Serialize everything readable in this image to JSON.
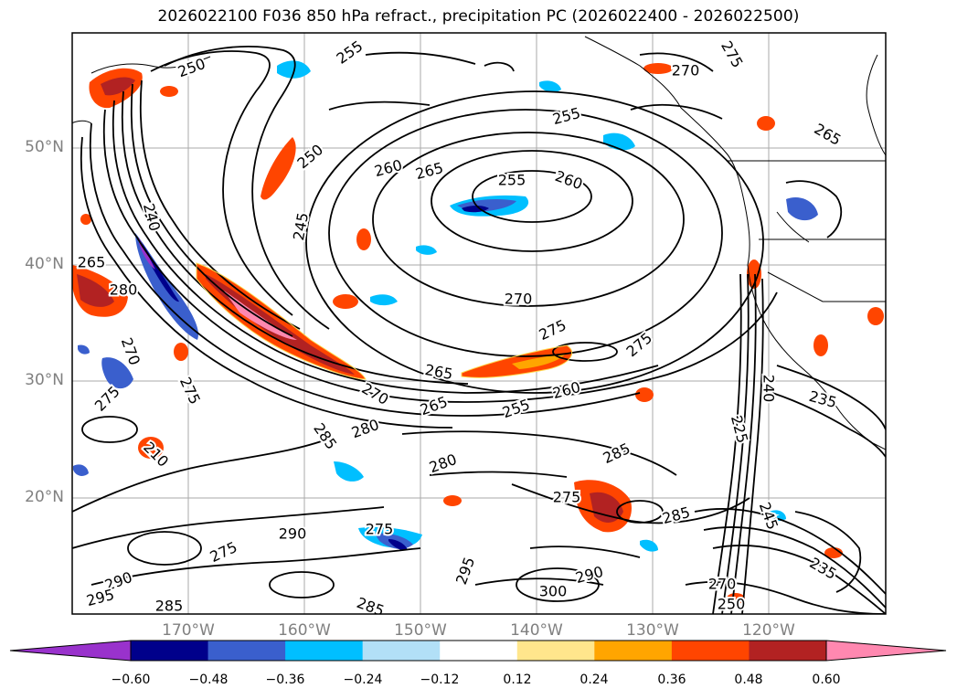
{
  "title": "2026022100 F036 850 hPa refract., precipitation PC (2026022400 - 2026022500)",
  "lat_labels": [
    "50°N",
    "40°N",
    "30°N",
    "20°N"
  ],
  "lon_labels": [
    "170°W",
    "160°W",
    "150°W",
    "140°W",
    "130°W",
    "120°W"
  ],
  "contour_labels": [
    "250",
    "255",
    "250",
    "245",
    "240",
    "280",
    "270",
    "275",
    "265",
    "210",
    "275",
    "285",
    "280",
    "255",
    "260",
    "265",
    "270",
    "275",
    "255",
    "260",
    "275",
    "265",
    "270",
    "265",
    "260",
    "255",
    "280",
    "285",
    "275",
    "285",
    "290",
    "295",
    "300",
    "290",
    "275",
    "275",
    "290",
    "285",
    "295",
    "285",
    "240",
    "235",
    "225",
    "245",
    "235",
    "270",
    "250",
    "265",
    "275",
    "270"
  ],
  "colorbar": {
    "ticks": [
      "−0.60",
      "−0.48",
      "−0.36",
      "−0.24",
      "−0.12",
      "0.12",
      "0.24",
      "0.36",
      "0.48",
      "0.60"
    ],
    "colors": [
      "#9932CC",
      "#00008B",
      "#3A5FCD",
      "#00BFFF",
      "#B2E0F7",
      "#FFFFFF",
      "#FFE68C",
      "#FFA500",
      "#FF4500",
      "#B22222",
      "#FF88B0"
    ]
  }
}
